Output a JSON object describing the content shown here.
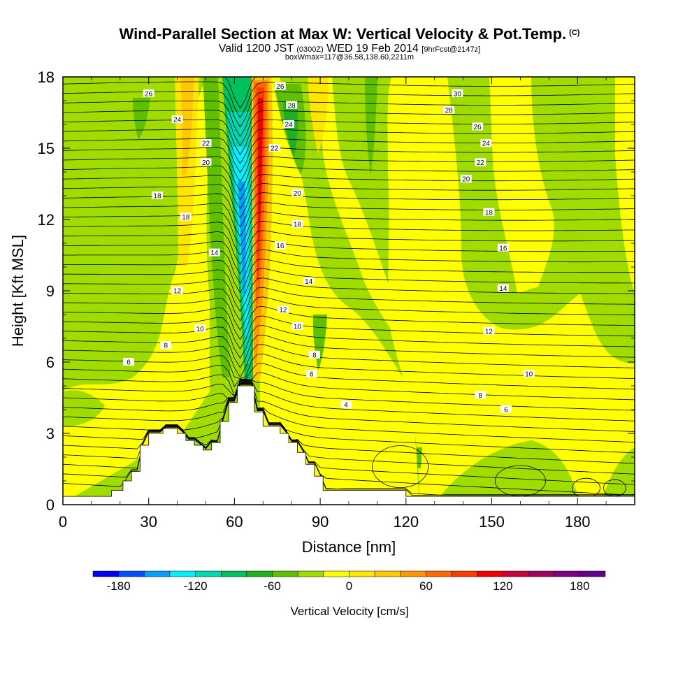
{
  "title": {
    "main": "Wind-Parallel Section at Max W: Vertical Velocity & Pot.Temp.",
    "main_mark": "(C)",
    "valid_a": "Valid 1200 JST ",
    "valid_b": "(0300Z)",
    "valid_c": " WED 19 Feb 2014 ",
    "valid_d": "[9hrFcst@2147z]",
    "sub": "boxWmax=117@36.58,138.60,2211m"
  },
  "chart_data": {
    "type": "heatmap",
    "xlabel": "Distance [nm]",
    "ylabel": "Height [Kft MSL]",
    "xlim": [
      0,
      200
    ],
    "ylim": [
      0,
      18
    ],
    "xticks": [
      0,
      30,
      60,
      90,
      120,
      150,
      180
    ],
    "yticks": [
      0,
      3,
      6,
      9,
      12,
      15,
      18
    ],
    "colorbar": {
      "label": "Vertical Velocity [cm/s]",
      "levels": [
        -200,
        -180,
        -160,
        -140,
        -120,
        -100,
        -80,
        -60,
        -40,
        -20,
        0,
        20,
        40,
        60,
        80,
        100,
        120,
        140,
        160,
        180,
        200
      ],
      "colors": [
        "#0000f0",
        "#0050ff",
        "#00a0ff",
        "#00f0ff",
        "#00d8b0",
        "#00c060",
        "#20b020",
        "#60c000",
        "#a0dc00",
        "#ffff00",
        "#ffe600",
        "#ffc800",
        "#ff9600",
        "#ff6a00",
        "#ff3c00",
        "#f00000",
        "#c8003c",
        "#a00064",
        "#7c0080",
        "#60008c"
      ],
      "tick_values": [
        -180,
        -120,
        -60,
        0,
        60,
        120,
        180
      ],
      "tick_labels": [
        "-180",
        "-120",
        "-60",
        "0",
        "60",
        "120",
        "180"
      ]
    },
    "isentrope_labels": [
      {
        "value": "26",
        "x": 30,
        "y": 17.3
      },
      {
        "value": "24",
        "x": 40,
        "y": 16.2
      },
      {
        "value": "22",
        "x": 50,
        "y": 15.2
      },
      {
        "value": "20",
        "x": 50,
        "y": 14.4
      },
      {
        "value": "18",
        "x": 33,
        "y": 13.0
      },
      {
        "value": "18",
        "x": 43,
        "y": 12.1
      },
      {
        "value": "14",
        "x": 53,
        "y": 10.6
      },
      {
        "value": "12",
        "x": 40,
        "y": 9.0
      },
      {
        "value": "10",
        "x": 48,
        "y": 7.4
      },
      {
        "value": "8",
        "x": 36,
        "y": 6.7
      },
      {
        "value": "6",
        "x": 23,
        "y": 6.0
      },
      {
        "value": "26",
        "x": 76,
        "y": 17.6
      },
      {
        "value": "28",
        "x": 80,
        "y": 16.8
      },
      {
        "value": "24",
        "x": 79,
        "y": 16.0
      },
      {
        "value": "22",
        "x": 74,
        "y": 15.0
      },
      {
        "value": "20",
        "x": 82,
        "y": 13.1
      },
      {
        "value": "18",
        "x": 82,
        "y": 11.8
      },
      {
        "value": "16",
        "x": 76,
        "y": 10.9
      },
      {
        "value": "14",
        "x": 86,
        "y": 9.4
      },
      {
        "value": "12",
        "x": 77,
        "y": 8.2
      },
      {
        "value": "10",
        "x": 82,
        "y": 7.5
      },
      {
        "value": "8",
        "x": 88,
        "y": 6.3
      },
      {
        "value": "6",
        "x": 87,
        "y": 5.5
      },
      {
        "value": "4",
        "x": 99,
        "y": 4.2
      },
      {
        "value": "30",
        "x": 138,
        "y": 17.3
      },
      {
        "value": "28",
        "x": 135,
        "y": 16.6
      },
      {
        "value": "26",
        "x": 145,
        "y": 15.9
      },
      {
        "value": "24",
        "x": 148,
        "y": 15.2
      },
      {
        "value": "22",
        "x": 146,
        "y": 14.4
      },
      {
        "value": "20",
        "x": 141,
        "y": 13.7
      },
      {
        "value": "18",
        "x": 149,
        "y": 12.3
      },
      {
        "value": "16",
        "x": 154,
        "y": 10.8
      },
      {
        "value": "14",
        "x": 154,
        "y": 9.1
      },
      {
        "value": "12",
        "x": 149,
        "y": 7.3
      },
      {
        "value": "10",
        "x": 163,
        "y": 5.5
      },
      {
        "value": "8",
        "x": 146,
        "y": 4.6
      },
      {
        "value": "6",
        "x": 155,
        "y": 4.0
      }
    ],
    "terrain": [
      [
        0,
        0.35
      ],
      [
        17,
        0.35
      ],
      [
        17,
        0.6
      ],
      [
        21,
        0.6
      ],
      [
        21,
        1.0
      ],
      [
        24,
        1.0
      ],
      [
        24,
        1.4
      ],
      [
        27,
        1.4
      ],
      [
        27,
        2.5
      ],
      [
        30,
        2.5
      ],
      [
        30,
        3.0
      ],
      [
        35,
        3.0
      ],
      [
        35,
        3.2
      ],
      [
        40,
        3.2
      ],
      [
        40,
        3.0
      ],
      [
        43,
        3.0
      ],
      [
        43,
        2.7
      ],
      [
        46,
        2.7
      ],
      [
        46,
        2.5
      ],
      [
        49,
        2.5
      ],
      [
        49,
        2.3
      ],
      [
        52,
        2.3
      ],
      [
        52,
        2.6
      ],
      [
        55,
        2.6
      ],
      [
        55,
        3.5
      ],
      [
        58,
        3.5
      ],
      [
        58,
        4.3
      ],
      [
        61,
        4.3
      ],
      [
        61,
        5.0
      ],
      [
        67,
        5.0
      ],
      [
        67,
        3.9
      ],
      [
        70,
        3.9
      ],
      [
        70,
        3.3
      ],
      [
        76,
        3.3
      ],
      [
        76,
        3.0
      ],
      [
        79,
        3.0
      ],
      [
        79,
        2.6
      ],
      [
        82,
        2.6
      ],
      [
        82,
        2.2
      ],
      [
        85,
        2.2
      ],
      [
        85,
        1.7
      ],
      [
        88,
        1.7
      ],
      [
        88,
        1.2
      ],
      [
        91,
        1.2
      ],
      [
        91,
        0.6
      ],
      [
        120,
        0.6
      ],
      [
        120,
        0.35
      ],
      [
        200,
        0.35
      ]
    ]
  }
}
